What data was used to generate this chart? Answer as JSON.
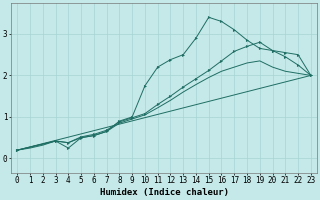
{
  "xlabel": "Humidex (Indice chaleur)",
  "background_color": "#c5e8e8",
  "grid_color": "#a8d4d4",
  "line_color": "#1e6e64",
  "xlim": [
    -0.5,
    23.5
  ],
  "ylim": [
    -0.35,
    3.75
  ],
  "xticks": [
    0,
    1,
    2,
    3,
    4,
    5,
    6,
    7,
    8,
    9,
    10,
    11,
    12,
    13,
    14,
    15,
    16,
    17,
    18,
    19,
    20,
    21,
    22,
    23
  ],
  "yticks": [
    0,
    1,
    2,
    3
  ],
  "line1_x": [
    0,
    1,
    2,
    3,
    4,
    5,
    6,
    7,
    8,
    9,
    10,
    11,
    12,
    13,
    14,
    15,
    16,
    17,
    18,
    19,
    20,
    21,
    22,
    23
  ],
  "line1_y": [
    0.2,
    0.25,
    0.32,
    0.42,
    0.38,
    0.5,
    0.55,
    0.65,
    0.85,
    0.95,
    1.05,
    1.22,
    1.4,
    1.6,
    1.78,
    1.95,
    2.1,
    2.2,
    2.3,
    2.35,
    2.2,
    2.1,
    2.05,
    2.0
  ],
  "line2_x": [
    0,
    3,
    4,
    5,
    6,
    7,
    8,
    9,
    10,
    11,
    12,
    13,
    14,
    15,
    16,
    17,
    18,
    19,
    20,
    21,
    22,
    23
  ],
  "line2_y": [
    0.2,
    0.42,
    0.25,
    0.5,
    0.55,
    0.65,
    0.9,
    1.0,
    1.75,
    2.2,
    2.38,
    2.5,
    2.9,
    3.4,
    3.3,
    3.1,
    2.85,
    2.65,
    2.6,
    2.55,
    2.5,
    2.0
  ],
  "line3_x": [
    0,
    3,
    4,
    5,
    6,
    7,
    8,
    9,
    10,
    11,
    12,
    13,
    14,
    15,
    16,
    17,
    18,
    19,
    20,
    21,
    22,
    23
  ],
  "line3_y": [
    0.2,
    0.42,
    0.38,
    0.52,
    0.58,
    0.68,
    0.88,
    0.98,
    1.08,
    1.3,
    1.5,
    1.72,
    1.92,
    2.12,
    2.35,
    2.58,
    2.7,
    2.8,
    2.6,
    2.45,
    2.25,
    2.0
  ],
  "line4_x": [
    0,
    23
  ],
  "line4_y": [
    0.2,
    2.0
  ],
  "tick_fontsize": 5.5,
  "xlabel_fontsize": 6.5
}
